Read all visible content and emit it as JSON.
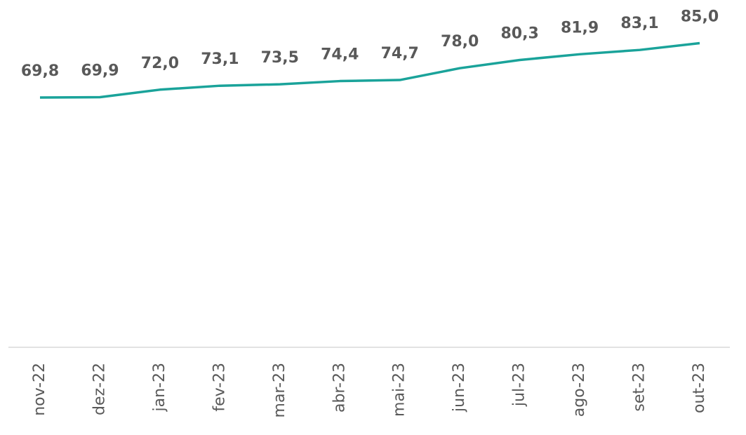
{
  "chart_data": {
    "type": "line",
    "categories": [
      "nov-22",
      "dez-22",
      "jan-23",
      "fev-23",
      "mar-23",
      "abr-23",
      "mai-23",
      "jun-23",
      "jul-23",
      "ago-23",
      "set-23",
      "out-23"
    ],
    "values": [
      69.8,
      69.9,
      72.0,
      73.1,
      73.5,
      74.4,
      74.7,
      78.0,
      80.3,
      81.9,
      83.1,
      85.0
    ],
    "value_labels": [
      "69,8",
      "69,9",
      "72,0",
      "73,1",
      "73,5",
      "74,4",
      "74,7",
      "78,0",
      "80,3",
      "81,9",
      "83,1",
      "85,0"
    ],
    "color": "#1aa39a",
    "ylim": [
      0,
      90
    ]
  }
}
